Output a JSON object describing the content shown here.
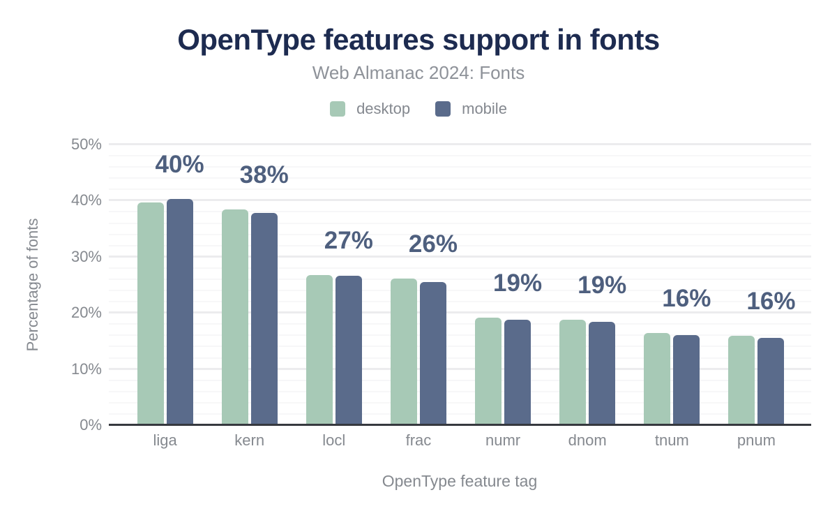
{
  "header": {
    "title": "OpenType features support in fonts",
    "subtitle": "Web Almanac 2024: Fonts"
  },
  "chart_data": {
    "type": "bar",
    "title": "OpenType features support in fonts",
    "subtitle": "Web Almanac 2024: Fonts",
    "categories": [
      "liga",
      "kern",
      "locl",
      "frac",
      "numr",
      "dnom",
      "tnum",
      "pnum"
    ],
    "series": [
      {
        "name": "desktop",
        "color": "#a7c9b6",
        "values": [
          39.7,
          38.4,
          26.8,
          26.1,
          19.1,
          18.8,
          16.4,
          15.9
        ]
      },
      {
        "name": "mobile",
        "color": "#5a6b8b",
        "values": [
          40.3,
          37.8,
          26.6,
          25.5,
          18.8,
          18.4,
          16.1,
          15.6
        ]
      }
    ],
    "group_labels": [
      "40%",
      "38%",
      "27%",
      "26%",
      "19%",
      "19%",
      "16%",
      "16%"
    ],
    "xlabel": "OpenType feature tag",
    "ylabel": "Percentage of fonts",
    "ylim": [
      0,
      50
    ],
    "ytick_step": 10,
    "minor_grid_step": 2,
    "ytick_labels": [
      "0%",
      "10%",
      "20%",
      "30%",
      "40%",
      "50%"
    ],
    "grid": true,
    "legend_position": "top",
    "colors": {
      "title": "#1d2b50",
      "subtitle": "#8e9299",
      "axis_text": "#85898f",
      "legend_text": "#84888f",
      "bar_value_label": "#4e5f7e",
      "baseline": "#36393f",
      "gridline_major": "#ececee",
      "gridline_minor": "#f7f7f8",
      "background": "#ffffff"
    }
  }
}
